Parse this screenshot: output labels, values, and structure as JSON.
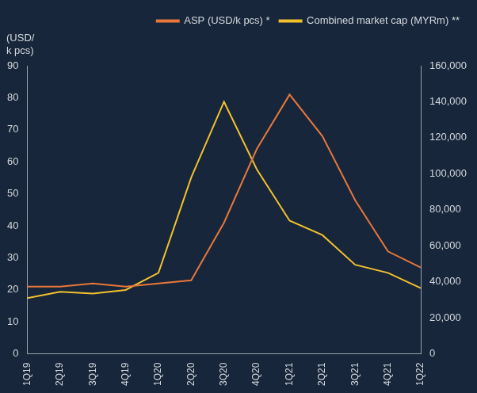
{
  "chart_data": {
    "type": "line",
    "y_label": "(USD/ k pcs)",
    "categories": [
      "1Q19",
      "2Q19",
      "3Q19",
      "4Q19",
      "1Q20",
      "2Q20",
      "3Q20",
      "4Q20",
      "1Q21",
      "2Q21",
      "3Q21",
      "4Q21",
      "1Q22"
    ],
    "series": [
      {
        "name": "ASP (USD/k pcs) *",
        "color": "#e8773a",
        "values": [
          21,
          21,
          22,
          21,
          22,
          23,
          41,
          64,
          81,
          68,
          48,
          32,
          27
        ]
      },
      {
        "name": "Combined market cap (MYRm) **",
        "color": "#f2c12e",
        "axis": "y2",
        "values": [
          31000,
          34500,
          33500,
          35500,
          45000,
          98000,
          140000,
          102500,
          74000,
          66000,
          49500,
          45000,
          36500
        ]
      }
    ],
    "ylim": [
      0,
      90
    ],
    "yticks": [
      0,
      10,
      20,
      30,
      40,
      50,
      60,
      70,
      80,
      90
    ],
    "y2lim": [
      0,
      160000
    ],
    "y2ticks": [
      0,
      {
        "value": 20000,
        "label": "20,000"
      },
      {
        "value": 40000,
        "label": "40,000"
      },
      {
        "value": 60000,
        "label": "60,000"
      },
      {
        "value": 80000,
        "label": "80,000"
      },
      {
        "value": 100000,
        "label": "100,000"
      },
      {
        "value": 120000,
        "label": "120,000"
      },
      {
        "value": 140000,
        "label": "140,000"
      },
      {
        "value": 160000,
        "label": "160,000"
      }
    ],
    "grid": false,
    "legend": "top"
  }
}
